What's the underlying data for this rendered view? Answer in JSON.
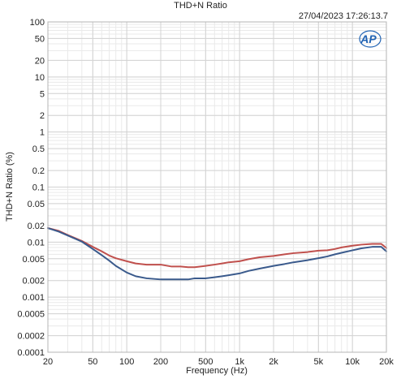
{
  "chart_data": {
    "type": "line",
    "title": "THD+N Ratio",
    "timestamp": "27/04/2023 17:26:13.7",
    "logo_text": "AP",
    "xlabel": "Frequency (Hz)",
    "ylabel": "THD+N Ratio (%)",
    "x_scale": "log",
    "y_scale": "log",
    "xlim": [
      20,
      20000
    ],
    "ylim": [
      0.0001,
      100
    ],
    "grid": true,
    "x_ticks": [
      {
        "value": 20,
        "label": "20"
      },
      {
        "value": 50,
        "label": "50"
      },
      {
        "value": 100,
        "label": "100"
      },
      {
        "value": 200,
        "label": "200"
      },
      {
        "value": 500,
        "label": "500"
      },
      {
        "value": 1000,
        "label": "1k"
      },
      {
        "value": 2000,
        "label": "2k"
      },
      {
        "value": 5000,
        "label": "5k"
      },
      {
        "value": 10000,
        "label": "10k"
      },
      {
        "value": 20000,
        "label": "20k"
      }
    ],
    "y_ticks": [
      {
        "value": 100,
        "label": "100"
      },
      {
        "value": 50,
        "label": "50"
      },
      {
        "value": 20,
        "label": "20"
      },
      {
        "value": 10,
        "label": "10"
      },
      {
        "value": 5,
        "label": "5"
      },
      {
        "value": 2,
        "label": "2"
      },
      {
        "value": 1,
        "label": "1"
      },
      {
        "value": 0.5,
        "label": "0.5"
      },
      {
        "value": 0.2,
        "label": "0.2"
      },
      {
        "value": 0.1,
        "label": "0.1"
      },
      {
        "value": 0.05,
        "label": "0.05"
      },
      {
        "value": 0.02,
        "label": "0.02"
      },
      {
        "value": 0.01,
        "label": "0.01"
      },
      {
        "value": 0.005,
        "label": "0.005"
      },
      {
        "value": 0.002,
        "label": "0.002"
      },
      {
        "value": 0.001,
        "label": "0.001"
      },
      {
        "value": 0.0005,
        "label": "0.0005"
      },
      {
        "value": 0.0002,
        "label": "0.0002"
      },
      {
        "value": 0.0001,
        "label": "0.0001"
      }
    ],
    "series": [
      {
        "color": "#c0504d",
        "x": [
          20,
          25,
          30,
          40,
          50,
          60,
          70,
          80,
          100,
          120,
          150,
          200,
          250,
          300,
          350,
          400,
          500,
          600,
          700,
          800,
          1000,
          1200,
          1500,
          2000,
          2500,
          3000,
          4000,
          5000,
          6000,
          7000,
          8000,
          10000,
          12000,
          15000,
          18000,
          20000
        ],
        "y": [
          0.018,
          0.016,
          0.0135,
          0.0105,
          0.0082,
          0.0068,
          0.0057,
          0.0051,
          0.0045,
          0.0041,
          0.0039,
          0.0039,
          0.0036,
          0.0036,
          0.0035,
          0.0035,
          0.0037,
          0.0039,
          0.0041,
          0.0043,
          0.0045,
          0.0049,
          0.0053,
          0.0056,
          0.006,
          0.0063,
          0.0066,
          0.007,
          0.0071,
          0.0075,
          0.008,
          0.0086,
          0.009,
          0.0093,
          0.0093,
          0.0078
        ]
      },
      {
        "color": "#3a5a8c",
        "x": [
          20,
          25,
          30,
          40,
          50,
          60,
          70,
          80,
          100,
          120,
          150,
          200,
          250,
          300,
          350,
          400,
          500,
          600,
          700,
          800,
          1000,
          1200,
          1500,
          2000,
          2500,
          3000,
          4000,
          5000,
          6000,
          7000,
          8000,
          10000,
          12000,
          15000,
          18000,
          20000
        ],
        "y": [
          0.018,
          0.0155,
          0.0132,
          0.0102,
          0.0075,
          0.0058,
          0.0046,
          0.0037,
          0.0028,
          0.0024,
          0.0022,
          0.0021,
          0.0021,
          0.0021,
          0.0021,
          0.0022,
          0.0022,
          0.0023,
          0.0024,
          0.0025,
          0.0027,
          0.003,
          0.0033,
          0.0037,
          0.004,
          0.0043,
          0.0047,
          0.0051,
          0.0055,
          0.006,
          0.0064,
          0.0071,
          0.0077,
          0.0082,
          0.0082,
          0.0068
        ]
      }
    ]
  },
  "colors": {
    "plot_border": "#b4b4b4",
    "grid_major": "#d3d3d3",
    "grid_minor": "#eaeaea",
    "logo": "#1f62b3"
  }
}
